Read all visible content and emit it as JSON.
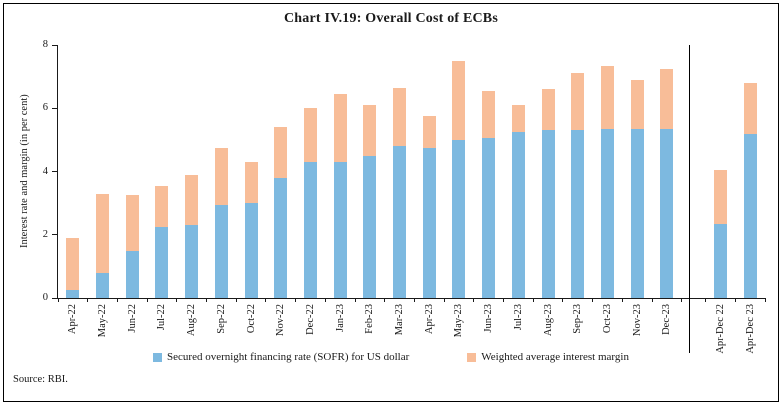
{
  "chart_data": {
    "type": "bar",
    "stacked": true,
    "title": "Chart IV.19: Overall Cost of ECBs",
    "ylabel": "Interest rate and margin (in per cent)",
    "xlabel": "",
    "ylim": [
      0,
      8
    ],
    "yticks": [
      0,
      2,
      4,
      6,
      8
    ],
    "grid": false,
    "legend_position": "bottom",
    "categories": [
      "Apr-22",
      "May-22",
      "Jun-22",
      "Jul-22",
      "Aug-22",
      "Sep-22",
      "Oct-22",
      "Nov-22",
      "Dec-22",
      "Jan-23",
      "Feb-23",
      "Mar-23",
      "Apr-23",
      "May-23",
      "Jun-23",
      "Jul-23",
      "Aug-23",
      "Sep-23",
      "Oct-23",
      "Nov-23",
      "Dec-23",
      "Apr-Dec 22",
      "Apr-Dec 23"
    ],
    "separator_after_index": 20,
    "series": [
      {
        "name": "Secured overnight financing rate (SOFR) for US dollar",
        "color": "#7db9e0",
        "values": [
          0.25,
          0.78,
          1.5,
          2.25,
          2.3,
          2.95,
          3.0,
          3.8,
          4.3,
          4.3,
          4.5,
          4.8,
          4.75,
          5.0,
          5.05,
          5.25,
          5.3,
          5.3,
          5.35,
          5.35,
          5.35,
          2.35,
          5.2
        ]
      },
      {
        "name": "Weighted average interest margin",
        "color": "#f8bd98",
        "values": [
          1.65,
          2.5,
          1.75,
          1.3,
          1.6,
          1.8,
          1.3,
          1.6,
          1.7,
          2.15,
          1.6,
          1.85,
          1.0,
          2.5,
          1.5,
          0.85,
          1.3,
          1.8,
          2.0,
          1.55,
          1.9,
          1.7,
          1.6
        ]
      }
    ]
  },
  "footer": {
    "source": "Source: RBI."
  }
}
